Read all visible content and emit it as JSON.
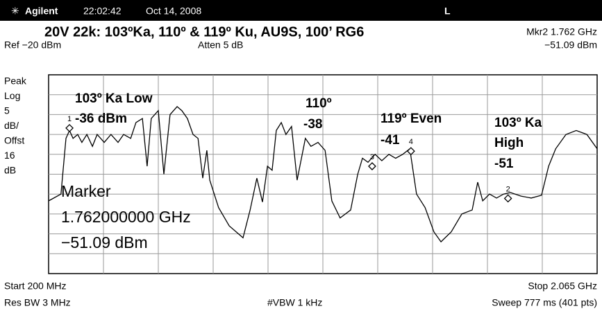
{
  "header": {
    "brand": "Agilent",
    "time": "22:02:42",
    "date": "Oct 14, 2008",
    "mode": "L"
  },
  "chart_data": {
    "type": "line",
    "title": "20V 22k: 103ºKa, 110º & 119º Ku,  AU9S, 100’ RG6",
    "marker_readout": "Mkr2  1.762 GHz",
    "marker_level": "−51.09 dBm",
    "ref_level": "Ref −20 dBm",
    "attenuation": "Atten 5 dB",
    "scale_labels": [
      "Peak",
      "Log",
      "5",
      "dB/",
      "Offst",
      "16",
      "dB"
    ],
    "start": "Start 200 MHz",
    "stop": "Stop 2.065 GHz",
    "rbw": "Res BW 3 MHz",
    "vbw": "#VBW 1 kHz",
    "sweep": "Sweep 777 ms (401 pts)",
    "annotations": [
      "103º Ka Low",
      "-36 dBm",
      "110º",
      "-38",
      "119º Even",
      "-41",
      "103º Ka",
      "High",
      "-51"
    ],
    "marker_box": [
      "Marker",
      "1.762000000 GHz",
      "−51.09 dBm"
    ],
    "xlim": [
      200,
      2065
    ],
    "ylim": [
      -70,
      -20
    ],
    "grid": true,
    "color": "#000000",
    "x": [
      200,
      242,
      259,
      271,
      283,
      299,
      313,
      330,
      349,
      365,
      389,
      412,
      436,
      455,
      479,
      497,
      519,
      535,
      549,
      573,
      592,
      613,
      637,
      653,
      672,
      691,
      708,
      724,
      738,
      748,
      778,
      814,
      861,
      885,
      908,
      927,
      944,
      960,
      974,
      991,
      1007,
      1026,
      1045,
      1073,
      1092,
      1116,
      1140,
      1163,
      1191,
      1227,
      1251,
      1267,
      1286,
      1310,
      1333,
      1357,
      1380,
      1404,
      1428,
      1451,
      1480,
      1510,
      1534,
      1569,
      1605,
      1640,
      1659,
      1676,
      1699,
      1723,
      1747,
      1770,
      1806,
      1841,
      1876,
      1900,
      1924,
      1959,
      1994,
      2030,
      2065
    ],
    "values": [
      -51.7,
      -50,
      -36,
      -34,
      -36,
      -35,
      -37,
      -35,
      -38,
      -35,
      -37,
      -35,
      -37,
      -35,
      -36,
      -32,
      -31,
      -43,
      -31,
      -29,
      -45,
      -30,
      -28,
      -29,
      -31,
      -35,
      -36,
      -46,
      -39,
      -46.5,
      -53.4,
      -58,
      -61,
      -54,
      -46,
      -52,
      -43,
      -44,
      -34,
      -32,
      -35,
      -33,
      -46.5,
      -36,
      -38,
      -37,
      -39,
      -51.7,
      -56,
      -54,
      -45,
      -41,
      -42,
      -40,
      -41.6,
      -40,
      -41,
      -40,
      -38.6,
      -50,
      -53.4,
      -59.5,
      -62,
      -59.5,
      -55,
      -54,
      -47,
      -51.7,
      -50,
      -51,
      -50,
      -49.6,
      -50.5,
      -51,
      -50.3,
      -43,
      -38.6,
      -35,
      -34,
      -35,
      -38.6
    ],
    "markers": [
      {
        "label": "1",
        "x": 271,
        "value": -33.4
      },
      {
        "label": "2",
        "x": 1762,
        "value": -51.09
      },
      {
        "label": "3",
        "x": 1300,
        "value": -43
      },
      {
        "label": "4",
        "x": 1432,
        "value": -39.2
      }
    ]
  }
}
